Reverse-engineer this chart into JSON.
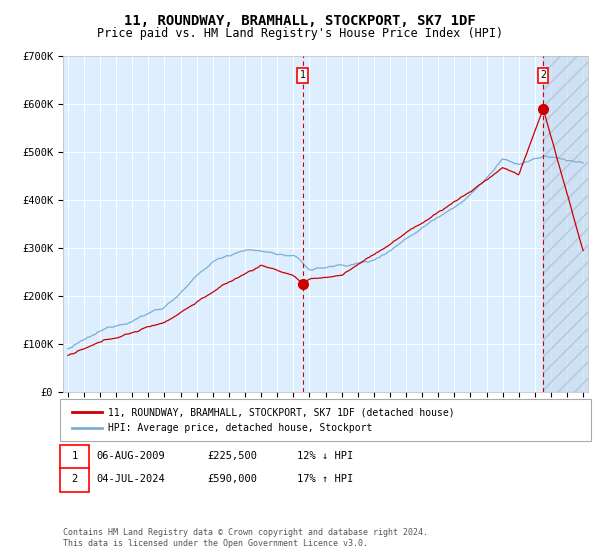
{
  "title": "11, ROUNDWAY, BRAMHALL, STOCKPORT, SK7 1DF",
  "subtitle": "Price paid vs. HM Land Registry's House Price Index (HPI)",
  "title_fontsize": 10,
  "subtitle_fontsize": 8.5,
  "hpi_color": "#7bafd4",
  "price_color": "#cc0000",
  "bg_color": "#ddeeff",
  "grid_color": "#ffffff",
  "event1_year": 2009.58,
  "event1_price": 225500,
  "event2_year": 2024.5,
  "event2_price": 590000,
  "legend_entry1": "11, ROUNDWAY, BRAMHALL, STOCKPORT, SK7 1DF (detached house)",
  "legend_entry2": "HPI: Average price, detached house, Stockport",
  "table_row1": [
    "1",
    "06-AUG-2009",
    "£225,500",
    "12% ↓ HPI"
  ],
  "table_row2": [
    "2",
    "04-JUL-2024",
    "£590,000",
    "17% ↑ HPI"
  ],
  "footer": "Contains HM Land Registry data © Crown copyright and database right 2024.\nThis data is licensed under the Open Government Licence v3.0.",
  "ylim": [
    0,
    700000
  ],
  "yticks": [
    0,
    100000,
    200000,
    300000,
    400000,
    500000,
    600000,
    700000
  ],
  "ytick_labels": [
    "£0",
    "£100K",
    "£200K",
    "£300K",
    "£400K",
    "£500K",
    "£600K",
    "£700K"
  ],
  "start_year": 1995,
  "end_year": 2027
}
